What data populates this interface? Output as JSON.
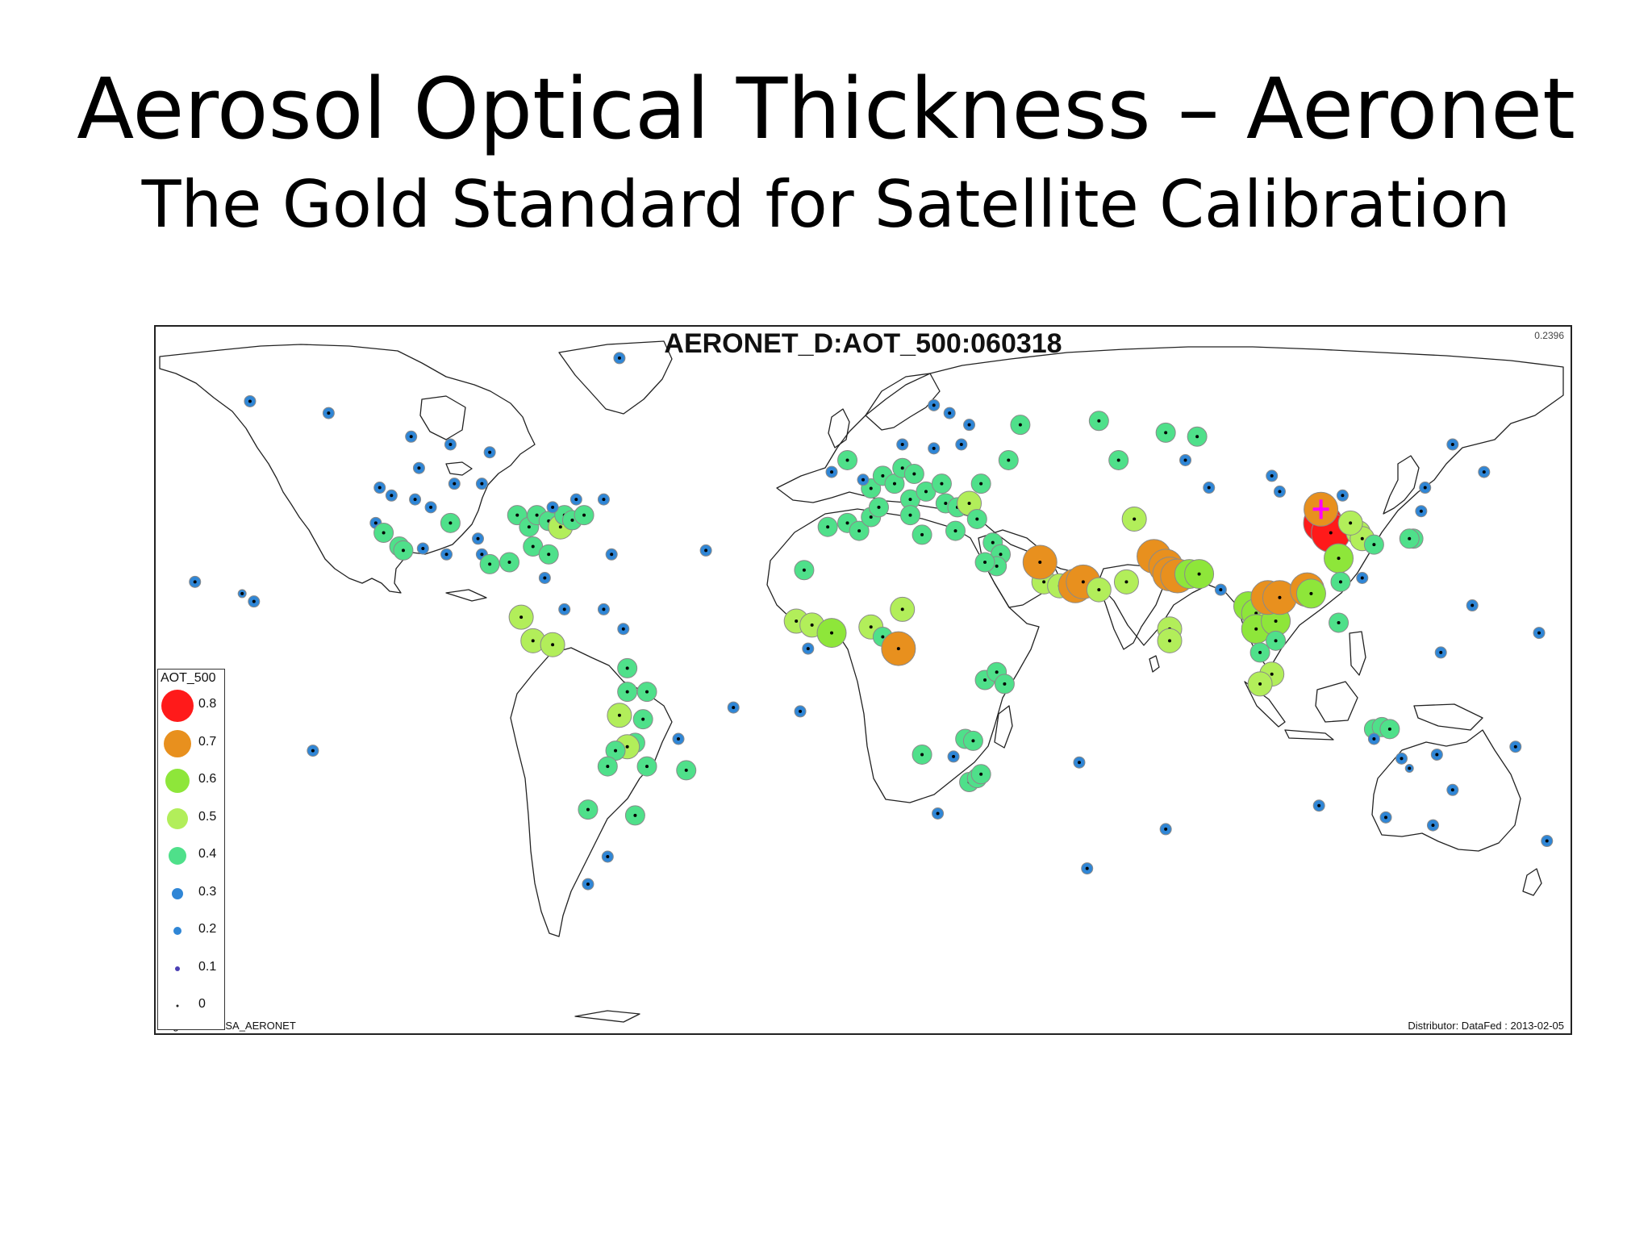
{
  "slide": {
    "title": "Aerosol Optical Thickness – Aeronet",
    "subtitle": "The Gold Standard for Satellite Calibration"
  },
  "map": {
    "title": "AERONET_D:AOT_500:060318",
    "corner_value": "0.2396",
    "originator": "Originator: NASA_AERONET",
    "distributor": "Distributor: DataFed : 2013-02-05"
  },
  "legend": {
    "title": "AOT_500",
    "items": [
      {
        "label": "0.8",
        "color": "#ff1a1a"
      },
      {
        "label": "0.7",
        "color": "#e8901e"
      },
      {
        "label": "0.6",
        "color": "#8ee63a"
      },
      {
        "label": "0.5",
        "color": "#b2ee5a"
      },
      {
        "label": "0.4",
        "color": "#4fe08a"
      },
      {
        "label": "0.3",
        "color": "#2f86d6"
      },
      {
        "label": "0.2",
        "color": "#2f86d6"
      },
      {
        "label": "0.1",
        "color": "#4b3fb4"
      },
      {
        "label": "0",
        "color": "#222222"
      }
    ]
  },
  "stations": [
    {
      "lon": -124,
      "lat": 40,
      "aot": 0.3
    },
    {
      "lon": -122,
      "lat": 37.5,
      "aot": 0.4
    },
    {
      "lon": -118,
      "lat": 34,
      "aot": 0.4
    },
    {
      "lon": -117,
      "lat": 33,
      "aot": 0.4
    },
    {
      "lon": -112,
      "lat": 33.5,
      "aot": 0.3
    },
    {
      "lon": -106,
      "lat": 32,
      "aot": 0.3
    },
    {
      "lon": -120,
      "lat": 47,
      "aot": 0.3
    },
    {
      "lon": -114,
      "lat": 46,
      "aot": 0.3
    },
    {
      "lon": -110,
      "lat": 44,
      "aot": 0.3
    },
    {
      "lon": -105,
      "lat": 40,
      "aot": 0.4
    },
    {
      "lon": -98,
      "lat": 36,
      "aot": 0.3
    },
    {
      "lon": -97,
      "lat": 32,
      "aot": 0.3
    },
    {
      "lon": -95,
      "lat": 29.5,
      "aot": 0.4
    },
    {
      "lon": -90,
      "lat": 30,
      "aot": 0.4
    },
    {
      "lon": -88,
      "lat": 42,
      "aot": 0.4
    },
    {
      "lon": -85,
      "lat": 39,
      "aot": 0.4
    },
    {
      "lon": -83,
      "lat": 42,
      "aot": 0.4
    },
    {
      "lon": -80,
      "lat": 40.5,
      "aot": 0.4
    },
    {
      "lon": -77,
      "lat": 39,
      "aot": 0.5
    },
    {
      "lon": -76,
      "lat": 42,
      "aot": 0.4
    },
    {
      "lon": -74,
      "lat": 40.7,
      "aot": 0.4
    },
    {
      "lon": -71,
      "lat": 42,
      "aot": 0.4
    },
    {
      "lon": -84,
      "lat": 34,
      "aot": 0.4
    },
    {
      "lon": -80,
      "lat": 32,
      "aot": 0.4
    },
    {
      "lon": -81,
      "lat": 26,
      "aot": 0.3
    },
    {
      "lon": -104,
      "lat": 50,
      "aot": 0.3
    },
    {
      "lon": -97,
      "lat": 50,
      "aot": 0.3
    },
    {
      "lon": -79,
      "lat": 44,
      "aot": 0.3
    },
    {
      "lon": -73,
      "lat": 46,
      "aot": 0.3
    },
    {
      "lon": -66,
      "lat": 46,
      "aot": 0.3
    },
    {
      "lon": -113,
      "lat": 54,
      "aot": 0.3
    },
    {
      "lon": -123,
      "lat": 49,
      "aot": 0.3
    },
    {
      "lon": -105,
      "lat": 60,
      "aot": 0.3
    },
    {
      "lon": -115,
      "lat": 62,
      "aot": 0.3
    },
    {
      "lon": -156,
      "lat": 71,
      "aot": 0.3
    },
    {
      "lon": -136,
      "lat": 68,
      "aot": 0.3
    },
    {
      "lon": -95,
      "lat": 58,
      "aot": 0.3
    },
    {
      "lon": -62,
      "lat": 82,
      "aot": 0.3
    },
    {
      "lon": -155,
      "lat": 20,
      "aot": 0.3
    },
    {
      "lon": -158,
      "lat": 22,
      "aot": 0.2
    },
    {
      "lon": -170,
      "lat": 25,
      "aot": 0.3
    },
    {
      "lon": -64,
      "lat": 32,
      "aot": 0.3
    },
    {
      "lon": -40,
      "lat": 33,
      "aot": 0.3
    },
    {
      "lon": -87,
      "lat": 16,
      "aot": 0.5
    },
    {
      "lon": -84,
      "lat": 10,
      "aot": 0.5
    },
    {
      "lon": -79,
      "lat": 9,
      "aot": 0.5
    },
    {
      "lon": -76,
      "lat": 18,
      "aot": 0.3
    },
    {
      "lon": -66,
      "lat": 18,
      "aot": 0.3
    },
    {
      "lon": -61,
      "lat": 13,
      "aot": 0.3
    },
    {
      "lon": -60,
      "lat": 3,
      "aot": 0.4
    },
    {
      "lon": -60,
      "lat": -3,
      "aot": 0.4
    },
    {
      "lon": -55,
      "lat": -3,
      "aot": 0.4
    },
    {
      "lon": -62,
      "lat": -9,
      "aot": 0.5
    },
    {
      "lon": -56,
      "lat": -10,
      "aot": 0.4
    },
    {
      "lon": -58,
      "lat": -16,
      "aot": 0.4
    },
    {
      "lon": -60,
      "lat": -17,
      "aot": 0.5
    },
    {
      "lon": -63,
      "lat": -18,
      "aot": 0.4
    },
    {
      "lon": -65,
      "lat": -22,
      "aot": 0.4
    },
    {
      "lon": -55,
      "lat": -22,
      "aot": 0.4
    },
    {
      "lon": -47,
      "lat": -15,
      "aot": 0.3
    },
    {
      "lon": -45,
      "lat": -23,
      "aot": 0.4
    },
    {
      "lon": -58,
      "lat": -34.5,
      "aot": 0.4
    },
    {
      "lon": -70,
      "lat": -33,
      "aot": 0.4
    },
    {
      "lon": -65,
      "lat": -45,
      "aot": 0.3
    },
    {
      "lon": -70,
      "lat": -52,
      "aot": 0.3
    },
    {
      "lon": -15,
      "lat": 28,
      "aot": 0.4
    },
    {
      "lon": -17,
      "lat": 15,
      "aot": 0.5
    },
    {
      "lon": -13,
      "lat": 14,
      "aot": 0.5
    },
    {
      "lon": -8,
      "lat": 12,
      "aot": 0.6
    },
    {
      "lon": 2,
      "lat": 13.5,
      "aot": 0.5
    },
    {
      "lon": 5,
      "lat": 11,
      "aot": 0.4
    },
    {
      "lon": 9,
      "lat": 8,
      "aot": 0.7
    },
    {
      "lon": 10,
      "lat": 18,
      "aot": 0.5
    },
    {
      "lon": -14,
      "lat": 8,
      "aot": 0.3
    },
    {
      "lon": -16,
      "lat": -8,
      "aot": 0.3
    },
    {
      "lon": -9,
      "lat": 39,
      "aot": 0.4
    },
    {
      "lon": -4,
      "lat": 40,
      "aot": 0.4
    },
    {
      "lon": -1,
      "lat": 38,
      "aot": 0.4
    },
    {
      "lon": 2,
      "lat": 41.5,
      "aot": 0.4
    },
    {
      "lon": 4,
      "lat": 44,
      "aot": 0.4
    },
    {
      "lon": 2,
      "lat": 48.8,
      "aot": 0.4
    },
    {
      "lon": 5,
      "lat": 52,
      "aot": 0.4
    },
    {
      "lon": 8,
      "lat": 50,
      "aot": 0.4
    },
    {
      "lon": 10,
      "lat": 54,
      "aot": 0.4
    },
    {
      "lon": 13,
      "lat": 52.5,
      "aot": 0.4
    },
    {
      "lon": 12,
      "lat": 46,
      "aot": 0.4
    },
    {
      "lon": 12,
      "lat": 42,
      "aot": 0.4
    },
    {
      "lon": 15,
      "lat": 37,
      "aot": 0.4
    },
    {
      "lon": 16,
      "lat": 48,
      "aot": 0.4
    },
    {
      "lon": 20,
      "lat": 50,
      "aot": 0.4
    },
    {
      "lon": 21,
      "lat": 45,
      "aot": 0.4
    },
    {
      "lon": 23.5,
      "lat": 38,
      "aot": 0.4
    },
    {
      "lon": 24,
      "lat": 44,
      "aot": 0.4
    },
    {
      "lon": 27,
      "lat": 45,
      "aot": 0.5
    },
    {
      "lon": 29,
      "lat": 41,
      "aot": 0.4
    },
    {
      "lon": 30,
      "lat": 50,
      "aot": 0.4
    },
    {
      "lon": 33,
      "lat": 35,
      "aot": 0.4
    },
    {
      "lon": 35,
      "lat": 32,
      "aot": 0.4
    },
    {
      "lon": 34,
      "lat": 29,
      "aot": 0.4
    },
    {
      "lon": 31,
      "lat": 30,
      "aot": 0.4
    },
    {
      "lon": -4,
      "lat": 56,
      "aot": 0.4
    },
    {
      "lon": 0,
      "lat": 51,
      "aot": 0.3
    },
    {
      "lon": -8,
      "lat": 53,
      "aot": 0.3
    },
    {
      "lon": 10,
      "lat": 60,
      "aot": 0.3
    },
    {
      "lon": 18,
      "lat": 59,
      "aot": 0.3
    },
    {
      "lon": 25,
      "lat": 60,
      "aot": 0.3
    },
    {
      "lon": 27,
      "lat": 65,
      "aot": 0.3
    },
    {
      "lon": 22,
      "lat": 68,
      "aot": 0.3
    },
    {
      "lon": 18,
      "lat": 70,
      "aot": 0.3
    },
    {
      "lon": 37,
      "lat": 56,
      "aot": 0.4
    },
    {
      "lon": 40,
      "lat": 65,
      "aot": 0.4
    },
    {
      "lon": 60,
      "lat": 66,
      "aot": 0.4
    },
    {
      "lon": 65,
      "lat": 56,
      "aot": 0.4
    },
    {
      "lon": 77,
      "lat": 63,
      "aot": 0.4
    },
    {
      "lon": 85,
      "lat": 62,
      "aot": 0.4
    },
    {
      "lon": 82,
      "lat": 56,
      "aot": 0.3
    },
    {
      "lon": 104,
      "lat": 52,
      "aot": 0.3
    },
    {
      "lon": 88,
      "lat": 49,
      "aot": 0.3
    },
    {
      "lon": 106,
      "lat": 48,
      "aot": 0.3
    },
    {
      "lon": 69,
      "lat": 41,
      "aot": 0.5
    },
    {
      "lon": 46,
      "lat": 25,
      "aot": 0.5
    },
    {
      "lon": 50,
      "lat": 24,
      "aot": 0.5
    },
    {
      "lon": 54,
      "lat": 24,
      "aot": 0.7
    },
    {
      "lon": 56,
      "lat": 25,
      "aot": 0.7
    },
    {
      "lon": 45,
      "lat": 30,
      "aot": 0.7
    },
    {
      "lon": 60,
      "lat": 23,
      "aot": 0.5
    },
    {
      "lon": 67,
      "lat": 25,
      "aot": 0.5
    },
    {
      "lon": 74,
      "lat": 31.5,
      "aot": 0.7
    },
    {
      "lon": 77,
      "lat": 29,
      "aot": 0.7
    },
    {
      "lon": 78,
      "lat": 27,
      "aot": 0.7
    },
    {
      "lon": 80,
      "lat": 26.5,
      "aot": 0.7
    },
    {
      "lon": 83,
      "lat": 27,
      "aot": 0.6
    },
    {
      "lon": 85.5,
      "lat": 27,
      "aot": 0.6
    },
    {
      "lon": 78,
      "lat": 13,
      "aot": 0.5
    },
    {
      "lon": 78,
      "lat": 10,
      "aot": 0.5
    },
    {
      "lon": 91,
      "lat": 23,
      "aot": 0.3
    },
    {
      "lon": 98,
      "lat": 18.8,
      "aot": 0.6
    },
    {
      "lon": 100,
      "lat": 17,
      "aot": 0.6
    },
    {
      "lon": 102,
      "lat": 14,
      "aot": 0.5
    },
    {
      "lon": 100,
      "lat": 13,
      "aot": 0.6
    },
    {
      "lon": 105,
      "lat": 15,
      "aot": 0.6
    },
    {
      "lon": 103,
      "lat": 21,
      "aot": 0.7
    },
    {
      "lon": 106,
      "lat": 21,
      "aot": 0.7
    },
    {
      "lon": 113,
      "lat": 23,
      "aot": 0.7
    },
    {
      "lon": 114,
      "lat": 22,
      "aot": 0.6
    },
    {
      "lon": 105,
      "lat": 10,
      "aot": 0.4
    },
    {
      "lon": 101,
      "lat": 7,
      "aot": 0.4
    },
    {
      "lon": 104,
      "lat": 1.5,
      "aot": 0.5
    },
    {
      "lon": 101,
      "lat": -1,
      "aot": 0.5
    },
    {
      "lon": 117,
      "lat": 40,
      "aot": 0.8
    },
    {
      "lon": 119,
      "lat": 37.5,
      "aot": 0.8
    },
    {
      "lon": 116.5,
      "lat": 43.5,
      "aot": 0.7
    },
    {
      "lon": 126,
      "lat": 37.5,
      "aot": 0.5
    },
    {
      "lon": 127,
      "lat": 36,
      "aot": 0.5
    },
    {
      "lon": 124,
      "lat": 40,
      "aot": 0.5
    },
    {
      "lon": 130,
      "lat": 34.5,
      "aot": 0.4
    },
    {
      "lon": 121,
      "lat": 31,
      "aot": 0.6
    },
    {
      "lon": 121.5,
      "lat": 25,
      "aot": 0.4
    },
    {
      "lon": 121,
      "lat": 14.6,
      "aot": 0.4
    },
    {
      "lon": 140,
      "lat": 36,
      "aot": 0.4
    },
    {
      "lon": 139,
      "lat": 36,
      "aot": 0.4
    },
    {
      "lon": 127,
      "lat": 26,
      "aot": 0.3
    },
    {
      "lon": 142,
      "lat": 43,
      "aot": 0.3
    },
    {
      "lon": 143,
      "lat": 49,
      "aot": 0.3
    },
    {
      "lon": 158,
      "lat": 53,
      "aot": 0.3
    },
    {
      "lon": 150,
      "lat": 60,
      "aot": 0.3
    },
    {
      "lon": 122,
      "lat": 47,
      "aot": 0.3
    },
    {
      "lon": 147,
      "lat": 7,
      "aot": 0.3
    },
    {
      "lon": 155,
      "lat": 19,
      "aot": 0.3
    },
    {
      "lon": 172,
      "lat": 12,
      "aot": 0.3
    },
    {
      "lon": 166,
      "lat": -17,
      "aot": 0.3
    },
    {
      "lon": 174,
      "lat": -41,
      "aot": 0.3
    },
    {
      "lon": 130,
      "lat": -12.5,
      "aot": 0.4
    },
    {
      "lon": 132,
      "lat": -12,
      "aot": 0.4
    },
    {
      "lon": 134,
      "lat": -12.5,
      "aot": 0.4
    },
    {
      "lon": 130,
      "lat": -15,
      "aot": 0.3
    },
    {
      "lon": 137,
      "lat": -20,
      "aot": 0.3
    },
    {
      "lon": 139,
      "lat": -22.5,
      "aot": 0.2
    },
    {
      "lon": 146,
      "lat": -19,
      "aot": 0.3
    },
    {
      "lon": 150,
      "lat": -28,
      "aot": 0.3
    },
    {
      "lon": 145,
      "lat": -37,
      "aot": 0.3
    },
    {
      "lon": 133,
      "lat": -35,
      "aot": 0.3
    },
    {
      "lon": 116,
      "lat": -32,
      "aot": 0.3
    },
    {
      "lon": 31,
      "lat": 0,
      "aot": 0.4
    },
    {
      "lon": 34,
      "lat": 2,
      "aot": 0.4
    },
    {
      "lon": 36,
      "lat": -1,
      "aot": 0.4
    },
    {
      "lon": 26,
      "lat": -15,
      "aot": 0.4
    },
    {
      "lon": 28,
      "lat": -15.5,
      "aot": 0.4
    },
    {
      "lon": 15,
      "lat": -19,
      "aot": 0.4
    },
    {
      "lon": 23,
      "lat": -19.5,
      "aot": 0.3
    },
    {
      "lon": 27,
      "lat": -26,
      "aot": 0.4
    },
    {
      "lon": 29,
      "lat": -25,
      "aot": 0.4
    },
    {
      "lon": 30,
      "lat": -24,
      "aot": 0.4
    },
    {
      "lon": 19,
      "lat": -34,
      "aot": 0.3
    },
    {
      "lon": 55,
      "lat": -21,
      "aot": 0.3
    },
    {
      "lon": 77,
      "lat": -38,
      "aot": 0.3
    },
    {
      "lon": 57,
      "lat": -48,
      "aot": 0.3
    },
    {
      "lon": -140,
      "lat": -18,
      "aot": 0.3
    },
    {
      "lon": -33,
      "lat": -7,
      "aot": 0.3
    }
  ],
  "wedge_marker": {
    "lon": 116.5,
    "lat": 43.5,
    "color": "#ff00ff"
  }
}
